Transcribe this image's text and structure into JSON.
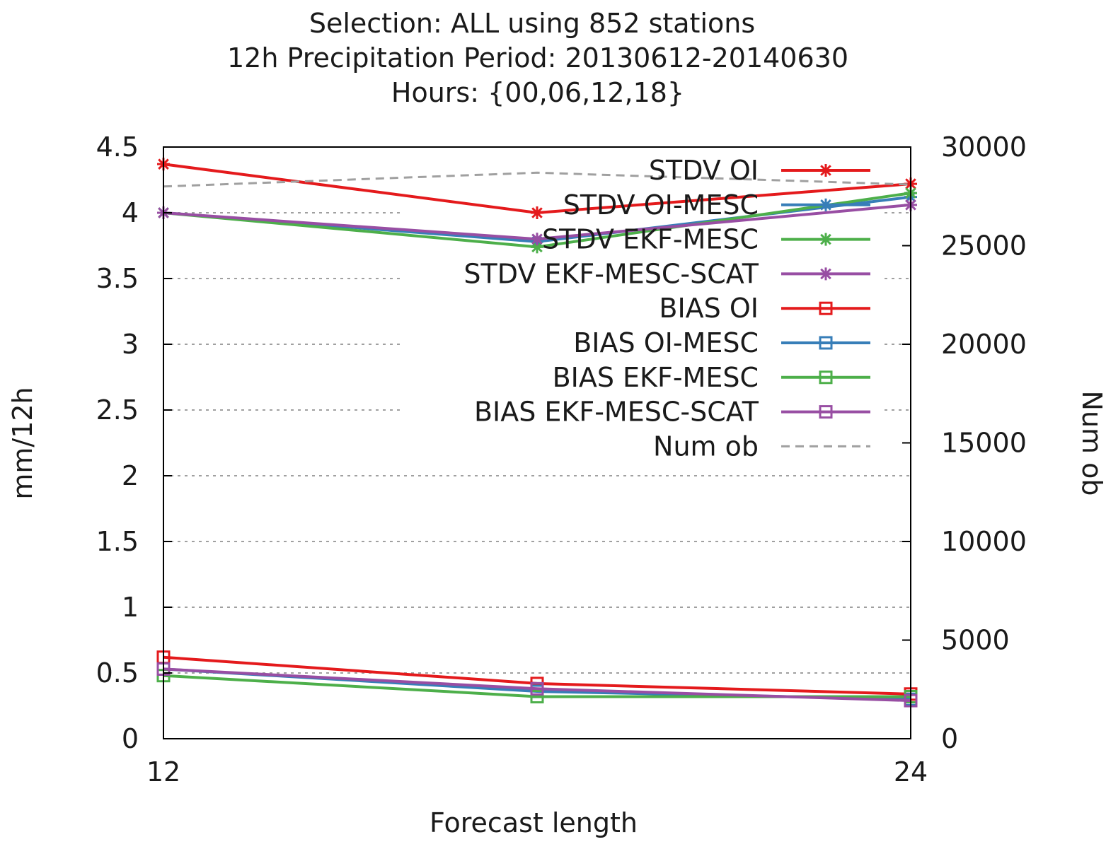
{
  "chart_data": {
    "type": "line",
    "title_lines": [
      "Selection: ALL using   852 stations",
      "12h Precipitation    Period: 20130612-20140630",
      "Hours: {00,06,12,18}"
    ],
    "xlabel": "Forecast length",
    "ylabel": "mm/12h",
    "y2label": "Num ob",
    "x": [
      12,
      18,
      24
    ],
    "xlim": [
      12,
      24
    ],
    "ylim": [
      0,
      4.5
    ],
    "y2lim": [
      0,
      30000
    ],
    "x_ticks": [
      12,
      24
    ],
    "y_ticks": [
      "0",
      "0.5",
      "1",
      "1.5",
      "2",
      "2.5",
      "3",
      "3.5",
      "4",
      "4.5"
    ],
    "y2_ticks": [
      "0",
      "5000",
      "10000",
      "15000",
      "20000",
      "25000",
      "30000"
    ],
    "grid": "horizontal dashed",
    "legend_position": "top-right",
    "series": [
      {
        "name": "STDV OI",
        "color": "#e41a1c",
        "marker": "star",
        "values": [
          4.37,
          4.0,
          4.22
        ]
      },
      {
        "name": "STDV OI-MESC",
        "color": "#377eb8",
        "marker": "star",
        "values": [
          4.0,
          3.78,
          4.12
        ]
      },
      {
        "name": "STDV EKF-MESC",
        "color": "#4daf4a",
        "marker": "star",
        "values": [
          4.0,
          3.74,
          4.15
        ]
      },
      {
        "name": "STDV EKF-MESC-SCAT",
        "color": "#984ea3",
        "marker": "star",
        "values": [
          4.0,
          3.8,
          4.06
        ]
      },
      {
        "name": "BIAS OI",
        "color": "#e41a1c",
        "marker": "square",
        "values": [
          0.62,
          0.42,
          0.34
        ]
      },
      {
        "name": "BIAS OI-MESC",
        "color": "#377eb8",
        "marker": "square",
        "values": [
          0.53,
          0.36,
          0.3
        ]
      },
      {
        "name": "BIAS EKF-MESC",
        "color": "#4daf4a",
        "marker": "square",
        "values": [
          0.48,
          0.32,
          0.32
        ]
      },
      {
        "name": "BIAS EKF-MESC-SCAT",
        "color": "#984ea3",
        "marker": "square",
        "values": [
          0.53,
          0.38,
          0.29
        ]
      },
      {
        "name": "Num ob",
        "color": "#a0a0a0",
        "marker": "none",
        "dashed": true,
        "axis": "right",
        "values": [
          28000,
          28700,
          28100
        ]
      }
    ]
  }
}
